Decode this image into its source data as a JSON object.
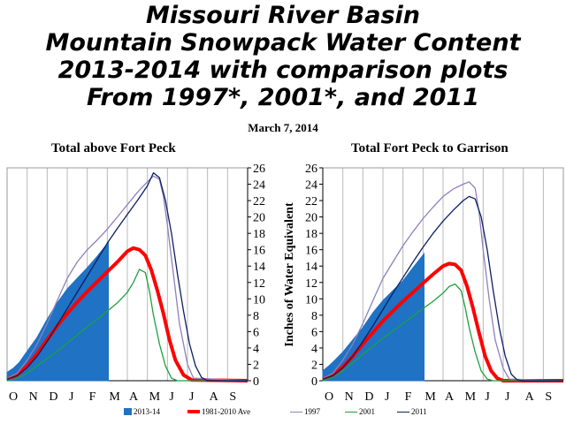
{
  "title_lines": [
    "Missouri River Basin",
    "Mountain Snowpack Water Content",
    "2013-2014 with comparison plots",
    "From 1997*, 2001*, and 2011"
  ],
  "date": "March 7, 2014",
  "ylabel": "Inches of Water Equivalent",
  "colors": {
    "s2013": "#1f72c4",
    "ave": "#ff0000",
    "s1997": "#8f7fbf",
    "s2001": "#1ea040",
    "s2011": "#0b1f63",
    "grid": "#b8b8b8"
  },
  "chart_data": [
    {
      "type": "line",
      "title": "Total above Fort Peck",
      "categories": [
        "O",
        "N",
        "D",
        "J",
        "F",
        "M",
        "A",
        "M",
        "J",
        "J",
        "A",
        "S"
      ],
      "ylim": [
        0,
        26
      ],
      "yticks": [
        0,
        2,
        4,
        6,
        8,
        10,
        12,
        14,
        16,
        18,
        20,
        22,
        24,
        26
      ],
      "y_axis_side": "right",
      "grid": true,
      "series": [
        {
          "key": "s2013",
          "name": "2013-14",
          "style": "area",
          "x": [
            0,
            0.3,
            0.6,
            1,
            1.5,
            2,
            2.5,
            3,
            3.5,
            4,
            4.5,
            5.05
          ],
          "y": [
            1,
            1.5,
            2.2,
            3.6,
            5.3,
            7.5,
            9.5,
            11.2,
            12.5,
            13.8,
            15.2,
            16.9
          ]
        },
        {
          "key": "ave",
          "name": "1981-2010 Ave",
          "style": "line",
          "x": [
            0,
            0.5,
            1,
            1.5,
            2,
            2.5,
            3,
            3.5,
            4,
            4.5,
            5,
            5.5,
            6,
            6.3,
            6.6,
            6.9,
            7.2,
            7.5,
            7.8,
            8.1,
            8.4,
            8.8,
            9.2,
            12
          ],
          "y": [
            0.2,
            0.7,
            1.8,
            3.3,
            5,
            6.7,
            8.2,
            9.6,
            10.9,
            12.1,
            13.3,
            14.5,
            15.8,
            16.2,
            16,
            15.3,
            13.5,
            11,
            8.2,
            5,
            2.5,
            0.7,
            0.1,
            0
          ]
        },
        {
          "key": "s1997",
          "name": "1997",
          "style": "line",
          "x": [
            0,
            0.5,
            1,
            1.5,
            2,
            2.5,
            3,
            3.5,
            4,
            4.5,
            5,
            5.5,
            6,
            6.5,
            7,
            7.3,
            7.6,
            7.8,
            8,
            8.3,
            8.6,
            9,
            9.3,
            12
          ],
          "y": [
            0.3,
            0.9,
            2.5,
            4.5,
            7,
            9.8,
            12.5,
            14.5,
            16,
            17.2,
            18.5,
            20,
            21.5,
            23,
            24.3,
            25,
            24.6,
            22.5,
            19,
            13,
            7,
            2,
            0.3,
            0
          ]
        },
        {
          "key": "s2001",
          "name": "2001",
          "style": "line",
          "x": [
            0,
            0.5,
            1,
            1.5,
            2,
            2.5,
            3,
            3.5,
            4,
            4.5,
            5,
            5.5,
            6,
            6.3,
            6.6,
            6.9,
            7.1,
            7.3,
            7.6,
            7.9,
            8.2,
            8.5,
            12
          ],
          "y": [
            0,
            0.3,
            0.9,
            1.8,
            2.7,
            3.6,
            4.6,
            5.6,
            6.6,
            7.5,
            8.5,
            9.5,
            10.8,
            12,
            13.6,
            13.2,
            11,
            8,
            4.5,
            1.8,
            0.3,
            0,
            0
          ]
        },
        {
          "key": "s2011",
          "name": "2011",
          "style": "line",
          "x": [
            0,
            0.5,
            1,
            1.5,
            2,
            2.5,
            3,
            3.5,
            4,
            4.5,
            5,
            5.5,
            6,
            6.5,
            7,
            7.3,
            7.6,
            7.9,
            8.2,
            8.5,
            8.8,
            9.1,
            9.4,
            9.7,
            10,
            12
          ],
          "y": [
            0.2,
            0.6,
            1.6,
            3,
            4.8,
            6.8,
            8.8,
            10.8,
            12.8,
            14.8,
            16.8,
            18.6,
            20.3,
            22,
            23.8,
            25.4,
            24.8,
            22,
            18,
            13,
            8.5,
            4.5,
            1.8,
            0.4,
            0,
            0
          ]
        }
      ]
    },
    {
      "type": "line",
      "title": "Total Fort Peck to Garrison",
      "categories": [
        "O",
        "N",
        "D",
        "J",
        "F",
        "M",
        "A",
        "M",
        "J",
        "J",
        "A",
        "S"
      ],
      "ylim": [
        0,
        26
      ],
      "yticks": [
        0,
        2,
        4,
        6,
        8,
        10,
        12,
        14,
        16,
        18,
        20,
        22,
        24,
        26
      ],
      "y_axis_side": "left",
      "grid": true,
      "series": [
        {
          "key": "s2013",
          "name": "2013-14",
          "style": "area",
          "x": [
            0,
            0.3,
            0.6,
            1,
            1.5,
            2,
            2.5,
            3,
            3.5,
            4,
            4.5,
            5.05
          ],
          "y": [
            1.2,
            1.8,
            2.5,
            3.5,
            5,
            6.5,
            8.3,
            9.8,
            11,
            12.2,
            13.8,
            15.5
          ]
        },
        {
          "key": "ave",
          "name": "1981-2010 Ave",
          "style": "line",
          "x": [
            0,
            0.5,
            1,
            1.5,
            2,
            2.5,
            3,
            3.5,
            4,
            4.5,
            5,
            5.5,
            6,
            6.3,
            6.6,
            6.9,
            7.2,
            7.5,
            7.8,
            8.1,
            8.4,
            8.7,
            9,
            12
          ],
          "y": [
            0.2,
            0.7,
            1.7,
            3,
            4.5,
            5.9,
            7.3,
            8.5,
            9.7,
            10.8,
            11.9,
            13,
            14,
            14.3,
            14.2,
            13.5,
            11.5,
            8.8,
            5.8,
            3,
            1.2,
            0.3,
            0,
            0
          ]
        },
        {
          "key": "s1997",
          "name": "1997",
          "style": "line",
          "x": [
            0,
            0.5,
            1,
            1.5,
            2,
            2.5,
            3,
            3.5,
            4,
            4.5,
            5,
            5.5,
            6,
            6.5,
            7,
            7.3,
            7.6,
            7.8,
            8,
            8.3,
            8.6,
            9,
            9.3,
            12
          ],
          "y": [
            0.3,
            0.9,
            2.5,
            4.5,
            7,
            9.8,
            12.5,
            14.5,
            16.5,
            18.2,
            19.8,
            21.2,
            22.5,
            23.4,
            24,
            24.3,
            23.5,
            20.5,
            16,
            10,
            5,
            1.5,
            0.2,
            0
          ]
        },
        {
          "key": "s2001",
          "name": "2001",
          "style": "line",
          "x": [
            0,
            0.5,
            1,
            1.5,
            2,
            2.5,
            3,
            3.5,
            4,
            4.5,
            5,
            5.5,
            6,
            6.3,
            6.6,
            6.9,
            7.1,
            7.3,
            7.6,
            7.9,
            8.2,
            8.5,
            12
          ],
          "y": [
            0,
            0.4,
            1.2,
            2.2,
            3.2,
            4.2,
            5.2,
            6.1,
            7,
            7.9,
            8.8,
            9.7,
            10.7,
            11.5,
            11.8,
            11,
            9,
            6.5,
            3.5,
            1.2,
            0.2,
            0,
            0
          ]
        },
        {
          "key": "s2011",
          "name": "2011",
          "style": "line",
          "x": [
            0,
            0.5,
            1,
            1.5,
            2,
            2.5,
            3,
            3.5,
            4,
            4.5,
            5,
            5.5,
            6,
            6.5,
            7,
            7.3,
            7.6,
            7.9,
            8.2,
            8.5,
            8.8,
            9.1,
            9.4,
            9.7,
            10,
            12
          ],
          "y": [
            0.2,
            0.6,
            1.6,
            3,
            4.8,
            6.7,
            8.7,
            10.7,
            12.6,
            14.5,
            16.3,
            18,
            19.5,
            20.8,
            22,
            22.5,
            22.2,
            20,
            16,
            11,
            6.5,
            3,
            0.8,
            0.1,
            0,
            0
          ]
        }
      ]
    }
  ],
  "legend": [
    {
      "key": "s2013",
      "label": "2013-14",
      "swatch": "box"
    },
    {
      "key": "ave",
      "label": "1981-2010 Ave",
      "swatch": "thick"
    },
    {
      "key": "s1997",
      "label": "1997",
      "swatch": "line"
    },
    {
      "key": "s2001",
      "label": "2001",
      "swatch": "line"
    },
    {
      "key": "s2011",
      "label": "2011",
      "swatch": "line"
    }
  ]
}
